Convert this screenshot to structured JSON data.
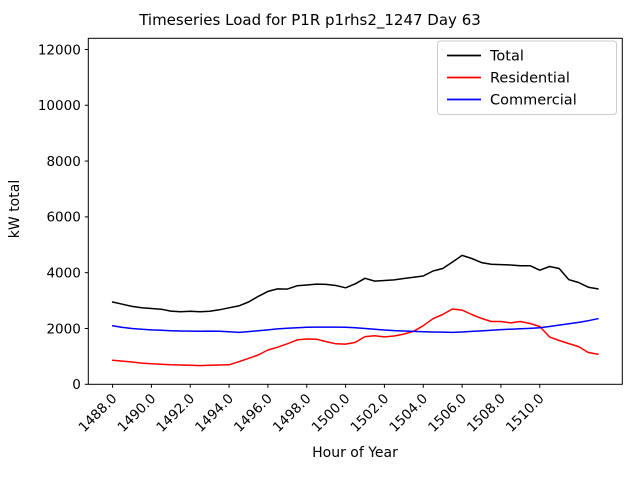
{
  "chart_data": {
    "type": "line",
    "title": "Timeseries Load for P1R p1rhs2_1247  Day 63",
    "xlabel": "Hour of Year",
    "ylabel": "kW total",
    "xlim": [
      1486.75,
      1514.25
    ],
    "ylim": [
      0,
      12400
    ],
    "grid": false,
    "background_color": "#ffffff",
    "spine_color": "#000000",
    "xticks": {
      "values": [
        1488,
        1490,
        1492,
        1494,
        1496,
        1498,
        1500,
        1502,
        1504,
        1506,
        1508,
        1510
      ],
      "labels": [
        "1488.0",
        "1490.0",
        "1492.0",
        "1494.0",
        "1496.0",
        "1498.0",
        "1500.0",
        "1502.0",
        "1504.0",
        "1506.0",
        "1508.0",
        "1510.0"
      ],
      "rotation_deg": 45
    },
    "yticks": {
      "values": [
        0,
        2000,
        4000,
        6000,
        8000,
        10000,
        12000
      ],
      "labels": [
        "0",
        "2000",
        "4000",
        "6000",
        "8000",
        "10000",
        "12000"
      ]
    },
    "legend": {
      "position": "upper right",
      "border_color": "#cccccc",
      "fill_color": "#ffffff",
      "entries": [
        "Total",
        "Residential",
        "Commercial"
      ]
    },
    "x": [
      1488.0,
      1488.5,
      1489.0,
      1489.5,
      1490.0,
      1490.5,
      1491.0,
      1491.5,
      1492.0,
      1492.5,
      1493.0,
      1493.5,
      1494.0,
      1494.5,
      1495.0,
      1495.5,
      1496.0,
      1496.5,
      1497.0,
      1497.5,
      1498.0,
      1498.5,
      1499.0,
      1499.5,
      1500.0,
      1500.5,
      1501.0,
      1501.5,
      1502.0,
      1502.5,
      1503.0,
      1503.5,
      1504.0,
      1504.5,
      1505.0,
      1505.5,
      1506.0,
      1506.5,
      1507.0,
      1507.5,
      1508.0,
      1508.5,
      1509.0,
      1509.5,
      1510.0,
      1510.5,
      1511.0,
      1511.5,
      1512.0,
      1512.5,
      1513.0
    ],
    "series": [
      {
        "name": "Total",
        "color": "#000000",
        "values": [
          2950,
          2870,
          2790,
          2740,
          2715,
          2690,
          2625,
          2600,
          2620,
          2600,
          2620,
          2670,
          2740,
          2810,
          2950,
          3150,
          3330,
          3420,
          3410,
          3530,
          3560,
          3590,
          3580,
          3540,
          3460,
          3600,
          3800,
          3700,
          3720,
          3740,
          3790,
          3840,
          3880,
          4060,
          4150,
          4380,
          4620,
          4510,
          4360,
          4300,
          4290,
          4275,
          4250,
          4250,
          4090,
          4220,
          4150,
          3750,
          3650,
          3480,
          3420
        ]
      },
      {
        "name": "Residential",
        "color": "#ff0000",
        "values": [
          860,
          830,
          800,
          760,
          740,
          720,
          700,
          690,
          680,
          670,
          680,
          690,
          700,
          810,
          930,
          1050,
          1230,
          1330,
          1450,
          1590,
          1625,
          1615,
          1530,
          1450,
          1440,
          1500,
          1710,
          1740,
          1700,
          1730,
          1800,
          1900,
          2100,
          2350,
          2500,
          2700,
          2660,
          2500,
          2360,
          2250,
          2250,
          2200,
          2250,
          2180,
          2070,
          1700,
          1570,
          1460,
          1350,
          1140,
          1080
        ]
      },
      {
        "name": "Commercial",
        "color": "#0000ff",
        "values": [
          2100,
          2040,
          2000,
          1975,
          1950,
          1935,
          1920,
          1910,
          1905,
          1900,
          1905,
          1900,
          1880,
          1860,
          1890,
          1920,
          1950,
          1985,
          2010,
          2030,
          2045,
          2050,
          2050,
          2050,
          2045,
          2030,
          2000,
          1970,
          1945,
          1925,
          1910,
          1895,
          1885,
          1875,
          1870,
          1860,
          1875,
          1895,
          1915,
          1940,
          1960,
          1975,
          1990,
          2005,
          2025,
          2070,
          2120,
          2170,
          2220,
          2280,
          2350
        ]
      }
    ]
  }
}
